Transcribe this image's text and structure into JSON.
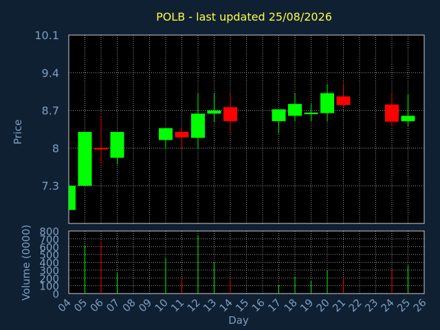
{
  "chart_data": {
    "type": "candlestick",
    "title": "POLB - last updated 25/08/2026",
    "ylabel": "Price",
    "volume_label": "Volume (0000)",
    "xlabel": "Day",
    "price_ticks": [
      "7.3",
      "8",
      "8.7",
      "9.4",
      "10.1"
    ],
    "price_ylim": [
      6.6,
      10.1
    ],
    "volume_ticks": [
      "0",
      "100",
      "200",
      "300",
      "400",
      "500",
      "600",
      "700",
      "800"
    ],
    "volume_ylim": [
      0,
      800
    ],
    "x_ticks": [
      "04",
      "05",
      "06",
      "07",
      "08",
      "09",
      "10",
      "11",
      "12",
      "13",
      "14",
      "15",
      "16",
      "17",
      "18",
      "19",
      "20",
      "21",
      "22",
      "23",
      "24",
      "25",
      "26"
    ],
    "colors": {
      "up": "#00ff00",
      "down": "#ff0000",
      "background": "#0f2033",
      "plot": "#000000",
      "grid": "#a0a0a0",
      "text": "#7f9fbf",
      "title": "#ffff3f"
    },
    "candles": [
      {
        "day": "04",
        "open": 6.85,
        "high": 7.3,
        "low": 6.85,
        "close": 7.3,
        "volume": 0
      },
      {
        "day": "05",
        "open": 7.3,
        "high": 8.3,
        "low": 7.3,
        "close": 8.3,
        "volume": 620
      },
      {
        "day": "06",
        "open": 8.0,
        "high": 8.6,
        "low": 7.7,
        "close": 7.98,
        "volume": 670
      },
      {
        "day": "07",
        "open": 7.82,
        "high": 8.3,
        "low": 7.7,
        "close": 8.3,
        "volume": 260
      },
      {
        "day": "10",
        "open": 8.15,
        "high": 8.37,
        "low": 8.0,
        "close": 8.37,
        "volume": 460
      },
      {
        "day": "11",
        "open": 8.3,
        "high": 8.38,
        "low": 8.0,
        "close": 8.2,
        "volume": 200
      },
      {
        "day": "12",
        "open": 8.19,
        "high": 9.02,
        "low": 8.0,
        "close": 8.64,
        "volume": 740
      },
      {
        "day": "13",
        "open": 8.64,
        "high": 9.02,
        "low": 8.48,
        "close": 8.7,
        "volume": 400
      },
      {
        "day": "14",
        "open": 8.76,
        "high": 9.02,
        "low": 8.31,
        "close": 8.5,
        "volume": 180
      },
      {
        "day": "17",
        "open": 8.5,
        "high": 8.72,
        "low": 8.27,
        "close": 8.72,
        "volume": 110
      },
      {
        "day": "18",
        "open": 8.6,
        "high": 9.02,
        "low": 8.5,
        "close": 8.82,
        "volume": 220
      },
      {
        "day": "19",
        "open": 8.63,
        "high": 8.82,
        "low": 8.5,
        "close": 8.66,
        "volume": 160
      },
      {
        "day": "20",
        "open": 8.65,
        "high": 9.19,
        "low": 8.5,
        "close": 9.02,
        "volume": 290
      },
      {
        "day": "21",
        "open": 8.96,
        "high": 9.19,
        "low": 8.75,
        "close": 8.8,
        "volume": 200
      },
      {
        "day": "24",
        "open": 8.81,
        "high": 9.02,
        "low": 8.4,
        "close": 8.49,
        "volume": 310
      },
      {
        "day": "25",
        "open": 8.5,
        "high": 9.0,
        "low": 8.4,
        "close": 8.6,
        "volume": 360
      }
    ]
  }
}
